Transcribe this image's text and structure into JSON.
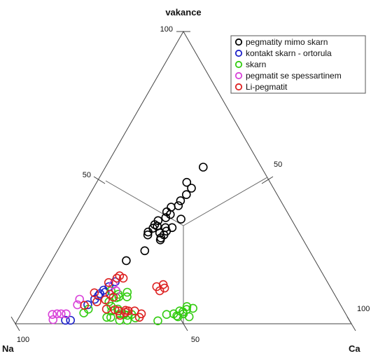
{
  "chart_data": {
    "type": "ternary-scatter",
    "vertex_labels": {
      "top": "vakance",
      "left": "Na",
      "right": "Ca"
    },
    "tick_labels": {
      "top_100": "100",
      "top_50": "50",
      "left_100": "100",
      "bottom_50": "50",
      "right_50": "50",
      "right_100": "100"
    },
    "grid": "center-lines",
    "legend_placement": "top-right",
    "series": [
      {
        "name": "pegmatity mimo skarn",
        "color": "#000000",
        "points": [
          {
            "vakance": 53.6,
            "Ca": 29.1
          },
          {
            "vakance": 48.4,
            "Ca": 26.8
          },
          {
            "vakance": 46.4,
            "Ca": 29.2
          },
          {
            "vakance": 44.2,
            "Ca": 28.8
          },
          {
            "vakance": 42.1,
            "Ca": 28.1
          },
          {
            "vakance": 40.4,
            "Ca": 28.3
          },
          {
            "vakance": 39.9,
            "Ca": 26.4
          },
          {
            "vakance": 38.3,
            "Ca": 25.9
          },
          {
            "vakance": 37.4,
            "Ca": 27.4
          },
          {
            "vakance": 35.8,
            "Ca": 31.4
          },
          {
            "vakance": 36.3,
            "Ca": 26.6
          },
          {
            "vakance": 35.3,
            "Ca": 24.8
          },
          {
            "vakance": 33.9,
            "Ca": 24.5
          },
          {
            "vakance": 33.4,
            "Ca": 25.5
          },
          {
            "vakance": 32.7,
            "Ca": 24.6
          },
          {
            "vakance": 32.9,
            "Ca": 28.2
          },
          {
            "vakance": 32.9,
            "Ca": 30.2
          },
          {
            "vakance": 31.7,
            "Ca": 29.1
          },
          {
            "vakance": 31.1,
            "Ca": 27.4
          },
          {
            "vakance": 30.4,
            "Ca": 29.0
          },
          {
            "vakance": 29.4,
            "Ca": 28.6
          },
          {
            "vakance": 28.7,
            "Ca": 28.8
          },
          {
            "vakance": 31.4,
            "Ca": 23.8
          },
          {
            "vakance": 30.4,
            "Ca": 24.2
          },
          {
            "vakance": 25.0,
            "Ca": 26.0
          },
          {
            "vakance": 21.6,
            "Ca": 22.2
          }
        ]
      },
      {
        "name": "kontakt skarn - ortorula",
        "color": "#1e22c8",
        "points": [
          {
            "vakance": 14.4,
            "Ca": 22.5
          },
          {
            "vakance": 12.7,
            "Ca": 21.5
          },
          {
            "vakance": 11.5,
            "Ca": 20.5
          },
          {
            "vakance": 10.8,
            "Ca": 21.3
          },
          {
            "vakance": 10.3,
            "Ca": 20.0
          },
          {
            "vakance": 9.6,
            "Ca": 19.9
          },
          {
            "vakance": 8.4,
            "Ca": 19.4
          },
          {
            "vakance": 6.5,
            "Ca": 18.3
          },
          {
            "vakance": 1.2,
            "Ca": 14.3
          },
          {
            "vakance": 1.2,
            "Ca": 15.8
          }
        ]
      },
      {
        "name": "skarn",
        "color": "#33cc11",
        "points": [
          {
            "vakance": 11.3,
            "Ca": 22.8
          },
          {
            "vakance": 10.1,
            "Ca": 25.6
          },
          {
            "vakance": 10.8,
            "Ca": 27.9
          },
          {
            "vakance": 9.2,
            "Ca": 26.2
          },
          {
            "vakance": 9.2,
            "Ca": 28.6
          },
          {
            "vakance": 8.9,
            "Ca": 25.6
          },
          {
            "vakance": 7.5,
            "Ca": 24.1
          },
          {
            "vakance": 6.0,
            "Ca": 25.5
          },
          {
            "vakance": 5.0,
            "Ca": 28.0
          },
          {
            "vakance": 4.4,
            "Ca": 26.5
          },
          {
            "vakance": 3.4,
            "Ca": 29.4
          },
          {
            "vakance": 3.2,
            "Ca": 30.8
          },
          {
            "vakance": 3.2,
            "Ca": 33.0
          },
          {
            "vakance": 2.9,
            "Ca": 31.9
          },
          {
            "vakance": 2.2,
            "Ca": 26.1
          },
          {
            "vakance": 2.2,
            "Ca": 27.3
          },
          {
            "vakance": 1.2,
            "Ca": 30.4
          },
          {
            "vakance": 1.2,
            "Ca": 32.7
          },
          {
            "vakance": 2.0,
            "Ca": 34.7
          },
          {
            "vakance": 5.0,
            "Ca": 19.2
          },
          {
            "vakance": 3.7,
            "Ca": 18.5
          },
          {
            "vakance": 5.9,
            "Ca": 48.1
          },
          {
            "vakance": 5.3,
            "Ca": 50.2
          },
          {
            "vakance": 4.9,
            "Ca": 48.5
          },
          {
            "vakance": 4.4,
            "Ca": 46.7
          },
          {
            "vakance": 4.1,
            "Ca": 47.8
          },
          {
            "vakance": 3.4,
            "Ca": 48.3
          },
          {
            "vakance": 3.4,
            "Ca": 45.4
          },
          {
            "vakance": 3.2,
            "Ca": 43.4
          },
          {
            "vakance": 2.7,
            "Ca": 46.7
          },
          {
            "vakance": 2.4,
            "Ca": 47.2
          },
          {
            "vakance": 2.4,
            "Ca": 50.5
          },
          {
            "vakance": 1.0,
            "Ca": 41.9
          }
        ]
      },
      {
        "name": "pegmatit se spessartinem",
        "color": "#d942d9",
        "points": [
          {
            "vakance": 8.4,
            "Ca": 14.9
          },
          {
            "vakance": 6.5,
            "Ca": 15.2
          },
          {
            "vakance": 3.4,
            "Ca": 13.4
          },
          {
            "vakance": 3.4,
            "Ca": 11.9
          },
          {
            "vakance": 3.4,
            "Ca": 10.7
          },
          {
            "vakance": 3.2,
            "Ca": 9.4
          },
          {
            "vakance": 1.4,
            "Ca": 10.5
          },
          {
            "vakance": 13.4,
            "Ca": 22.4
          },
          {
            "vakance": 11.3,
            "Ca": 24.3
          }
        ]
      },
      {
        "name": "Li-pegmatit",
        "color": "#dd2222",
        "points": [
          {
            "vakance": 16.4,
            "Ca": 22.8
          },
          {
            "vakance": 15.6,
            "Ca": 22.4
          },
          {
            "vakance": 15.6,
            "Ca": 24.3
          },
          {
            "vakance": 14.1,
            "Ca": 20.7
          },
          {
            "vakance": 10.6,
            "Ca": 18.2
          },
          {
            "vakance": 10.1,
            "Ca": 23.1
          },
          {
            "vakance": 9.1,
            "Ca": 24.6
          },
          {
            "vakance": 8.2,
            "Ca": 22.7
          },
          {
            "vakance": 7.5,
            "Ca": 20.5
          },
          {
            "vakance": 6.3,
            "Ca": 17.4
          },
          {
            "vakance": 5.0,
            "Ca": 24.6
          },
          {
            "vakance": 4.8,
            "Ca": 27.2
          },
          {
            "vakance": 4.4,
            "Ca": 28.4
          },
          {
            "vakance": 3.9,
            "Ca": 30.8
          },
          {
            "vakance": 4.6,
            "Ca": 30.5
          },
          {
            "vakance": 4.4,
            "Ca": 31.4
          },
          {
            "vakance": 4.4,
            "Ca": 33.3
          },
          {
            "vakance": 3.4,
            "Ca": 35.8
          },
          {
            "vakance": 2.2,
            "Ca": 35.8
          },
          {
            "vakance": 2.9,
            "Ca": 29.7
          },
          {
            "vakance": 12.7,
            "Ca": 35.7
          },
          {
            "vakance": 13.4,
            "Ca": 37.3
          },
          {
            "vakance": 12.2,
            "Ca": 38.3
          },
          {
            "vakance": 11.3,
            "Ca": 37.3
          }
        ]
      }
    ]
  }
}
